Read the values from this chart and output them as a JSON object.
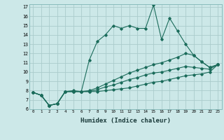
{
  "xlabel": "Humidex (Indice chaleur)",
  "bg_color": "#cce8e8",
  "grid_color": "#aacccc",
  "line_color": "#1a6b5a",
  "x_min": 0,
  "x_max": 23,
  "y_min": 6,
  "y_max": 17,
  "series": [
    [
      7.8,
      7.5,
      6.4,
      6.6,
      7.9,
      8.0,
      7.9,
      11.3,
      13.3,
      14.0,
      15.0,
      14.7,
      15.0,
      14.7,
      14.7,
      17.2,
      13.5,
      15.8,
      14.4,
      13.0,
      11.8,
      11.1,
      10.5,
      10.8
    ],
    [
      7.8,
      7.5,
      6.4,
      6.6,
      7.9,
      7.9,
      7.9,
      8.0,
      8.3,
      8.7,
      9.1,
      9.5,
      9.9,
      10.2,
      10.5,
      10.8,
      11.0,
      11.3,
      11.6,
      12.0,
      11.8,
      11.1,
      10.5,
      10.8
    ],
    [
      7.8,
      7.5,
      6.4,
      6.6,
      7.9,
      7.9,
      7.9,
      7.9,
      8.1,
      8.4,
      8.6,
      8.9,
      9.2,
      9.4,
      9.7,
      9.9,
      10.0,
      10.2,
      10.4,
      10.6,
      10.5,
      10.4,
      10.3,
      10.8
    ],
    [
      7.8,
      7.5,
      6.4,
      6.6,
      7.9,
      7.9,
      7.9,
      7.9,
      7.9,
      8.0,
      8.1,
      8.2,
      8.3,
      8.5,
      8.7,
      8.9,
      9.0,
      9.2,
      9.4,
      9.6,
      9.7,
      9.8,
      10.0,
      10.8
    ]
  ]
}
